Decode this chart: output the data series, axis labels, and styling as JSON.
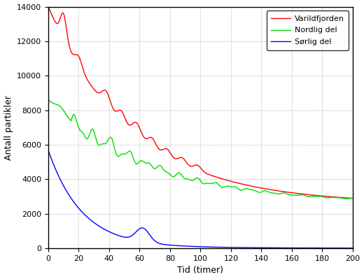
{
  "xlabel": "Tid (timer)",
  "ylabel": "Antall partikler",
  "xlim": [
    0,
    200
  ],
  "ylim": [
    0,
    14000
  ],
  "xticks": [
    0,
    20,
    40,
    60,
    80,
    100,
    120,
    140,
    160,
    180,
    200
  ],
  "yticks": [
    0,
    2000,
    4000,
    6000,
    8000,
    10000,
    12000,
    14000
  ],
  "legend_entries": [
    "Varildfjorden",
    "Nordlig del",
    "Sørlig del"
  ],
  "line_colors": [
    "#ff0000",
    "#00dd00",
    "#0000ff"
  ],
  "background_color": "#ffffff",
  "grid_color": "#888888",
  "figsize": [
    5.2,
    3.99
  ],
  "dpi": 100
}
